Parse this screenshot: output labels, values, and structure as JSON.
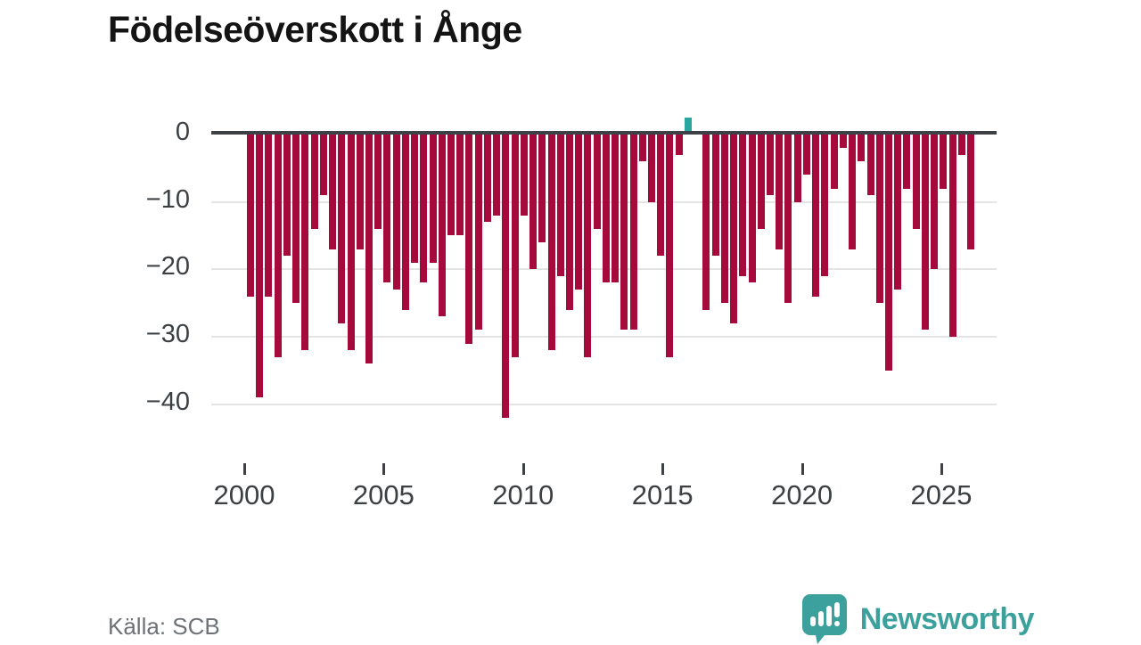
{
  "title": "Födelseöverskott i Ånge",
  "source": "Källa: SCB",
  "branding": {
    "name": "Newsworthy",
    "icon": "newsworthy-bubble-chart-icon"
  },
  "colors": {
    "bar_negative": "#a60a3c",
    "bar_positive": "#2aa6a0",
    "axis_line": "#3d4145",
    "gridline": "#e4e4e4",
    "tick_label": "#3c4043",
    "title_text": "#141414",
    "source_text": "#6e7276",
    "brand_teal": "#3ca19c"
  },
  "chart_data": {
    "type": "bar",
    "title": "Födelseöverskott i Ånge",
    "xlabel": "",
    "ylabel": "",
    "grid": true,
    "legend": false,
    "x_tick_years": [
      2000,
      2005,
      2010,
      2015,
      2020,
      2025
    ],
    "y_tick_labels": [
      "0",
      "−10",
      "−20",
      "−30",
      "−40"
    ],
    "y_tick_values": [
      0,
      -10,
      -20,
      -30,
      -40
    ],
    "ylim": [
      -44,
      3
    ],
    "x_start_year": 2000,
    "x_end_year_approx": 2025.6,
    "positive_bar_color": "#2aa6a0",
    "negative_bar_color": "#a60a3c",
    "values": [
      -24,
      -39,
      -24,
      -33,
      -18,
      -25,
      -32,
      -14,
      -9,
      -17,
      -28,
      -32,
      -17,
      -34,
      -14,
      -22,
      -23,
      -26,
      -19,
      -22,
      -19,
      -27,
      -15,
      -15,
      -31,
      -29,
      -13,
      -12,
      -42,
      -33,
      -12,
      -20,
      -16,
      -32,
      -21,
      -26,
      -23,
      -33,
      -14,
      -22,
      -22,
      -29,
      -29,
      -4,
      -10,
      -18,
      -33,
      -3,
      2,
      0,
      -26,
      -18,
      -25,
      -28,
      -21,
      -22,
      -14,
      -9,
      -17,
      -25,
      -10,
      -6,
      -24,
      -21,
      -8,
      -2,
      -17,
      -4,
      -9,
      -25,
      -35,
      -23,
      -8,
      -14,
      -29,
      -20,
      -8,
      -30,
      -3,
      -17
    ]
  }
}
